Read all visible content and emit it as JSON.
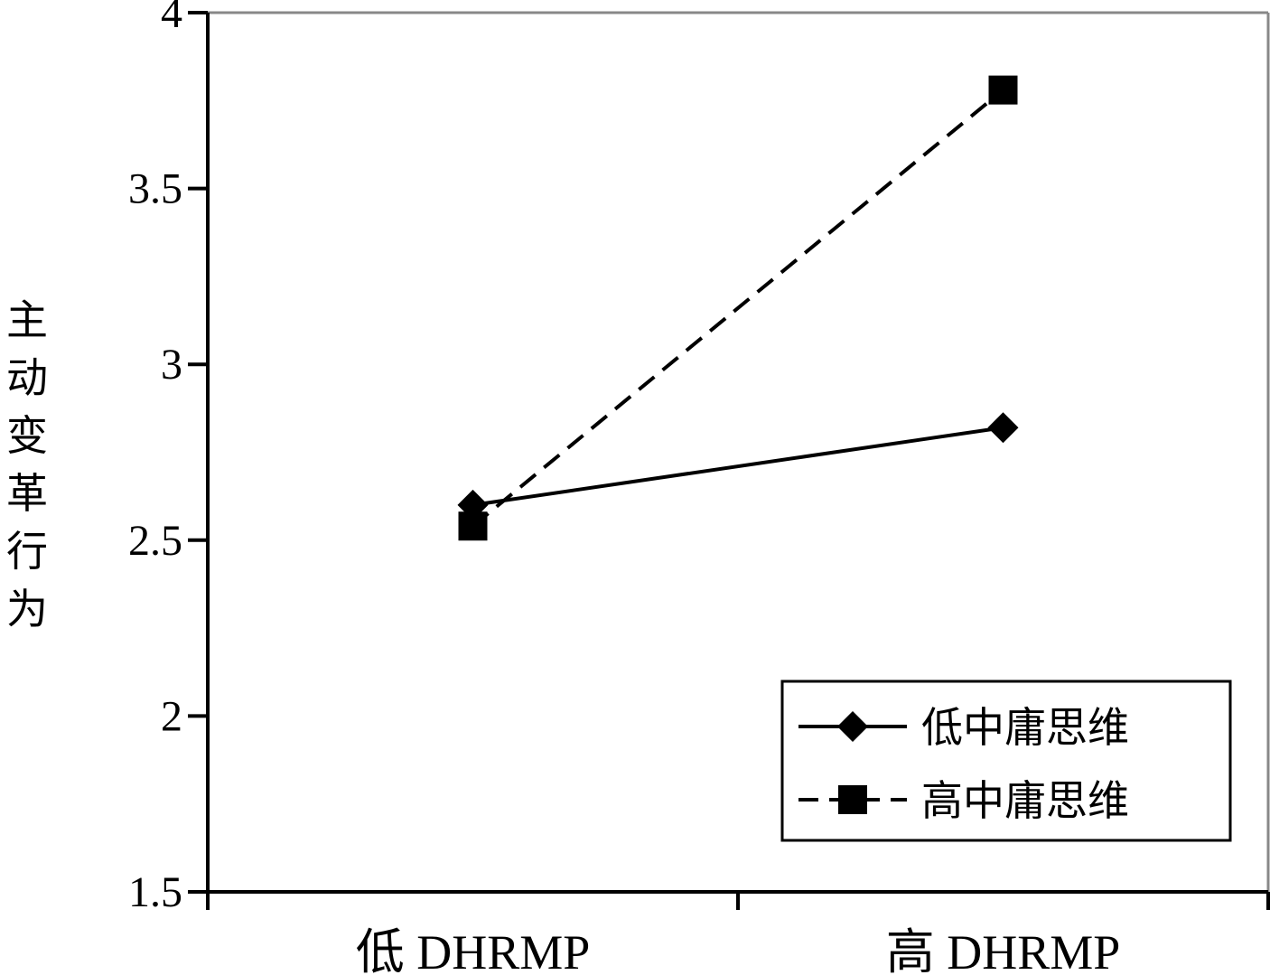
{
  "chart_data": {
    "type": "line",
    "title": "",
    "xlabel": "",
    "ylabel": "主动变革行为",
    "categories": [
      "低 DHRMP",
      "高 DHRMP"
    ],
    "ylim": [
      1.5,
      4
    ],
    "yticks": [
      "1.5",
      "2",
      "2.5",
      "3",
      "3.5",
      "4"
    ],
    "grid": false,
    "legend_position": "bottom-right",
    "series": [
      {
        "name": "低中庸思维",
        "values": [
          2.6,
          2.82
        ],
        "marker": "diamond",
        "line_style": "solid",
        "color": "#000000"
      },
      {
        "name": "高中庸思维",
        "values": [
          2.54,
          3.78
        ],
        "marker": "square",
        "line_style": "dashed",
        "color": "#000000"
      }
    ]
  }
}
